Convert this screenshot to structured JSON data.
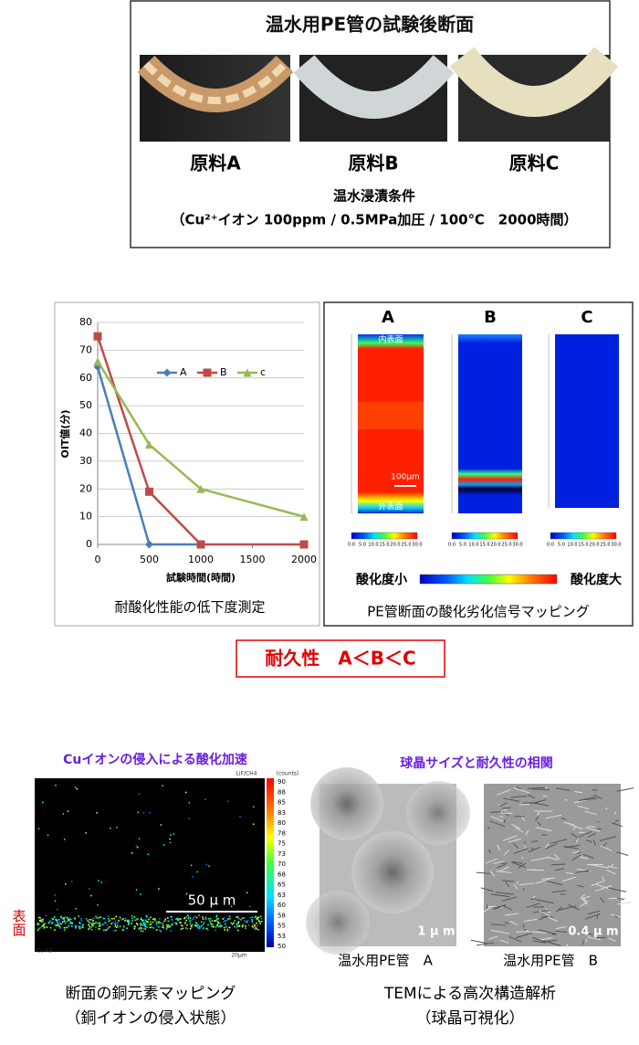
{
  "top": {
    "title": "温水用PE管の試験後断面",
    "labels": [
      "原料A",
      "原料B",
      "原料C"
    ],
    "condition_title": "温水浸漬条件",
    "condition": "（Cu²⁺イオン 100ppm / 0.5MPa加圧 / 100℃　2000時間）"
  },
  "chart_data": {
    "type": "line",
    "xlabel": "試験時間(時間)",
    "ylabel": "OIT値(分)",
    "caption": "耐酸化性能の低下度測定",
    "xlim": [
      0,
      2000
    ],
    "xticks": [
      0,
      500,
      1000,
      1500,
      2000
    ],
    "ylim": [
      0,
      80
    ],
    "yticks": [
      0,
      10,
      20,
      30,
      40,
      50,
      60,
      70,
      80
    ],
    "grid": true,
    "series": [
      {
        "name": "A",
        "color": "#4a7ebb",
        "marker": "diamond",
        "x": [
          0,
          500,
          1000
        ],
        "values": [
          64,
          0,
          0
        ]
      },
      {
        "name": "B",
        "color": "#be4b48",
        "marker": "square",
        "x": [
          0,
          500,
          1000,
          2000
        ],
        "values": [
          75,
          19,
          0,
          0
        ]
      },
      {
        "name": "c",
        "color": "#98b954",
        "marker": "triangle",
        "x": [
          0,
          500,
          1000,
          2000
        ],
        "values": [
          66,
          36,
          20,
          10
        ]
      }
    ]
  },
  "mapping": {
    "panels": [
      "A",
      "B",
      "C"
    ],
    "inner": "内表面",
    "outer": "外表面",
    "scale": "100μm",
    "bar_ticks": [
      "0.0",
      "5.0",
      "10.0",
      "15.0",
      "20.0",
      "25.0",
      "30.0"
    ],
    "low": "酸化度小",
    "high": "酸化度大",
    "caption": "PE管断面の酸化劣化信号マッピング"
  },
  "result": "耐久性　A＜B＜C",
  "copper": {
    "title": "Cuイオンの侵入による酸化加速",
    "detector": "LiF/CH4",
    "unit": "(counts)",
    "counts": [
      "90",
      "88",
      "85",
      "83",
      "80",
      "78",
      "75",
      "73",
      "70",
      "68",
      "65",
      "63",
      "60",
      "58",
      "55",
      "53",
      "50"
    ],
    "scale": "50 μ m",
    "element": "Cu Ka",
    "small_scale": "20μm",
    "surface": "表面",
    "caption": "断面の銅元素マッピング",
    "caption2": "（銅イオンの侵入状態）"
  },
  "tem": {
    "title": "球晶サイズと耐久性の相関",
    "scales": [
      "1 μ m",
      "0.4 μ m"
    ],
    "labels": [
      "温水用PE管　A",
      "温水用PE管　B"
    ],
    "caption": "TEMによる高次構造解析",
    "caption2": "（球晶可視化）"
  }
}
